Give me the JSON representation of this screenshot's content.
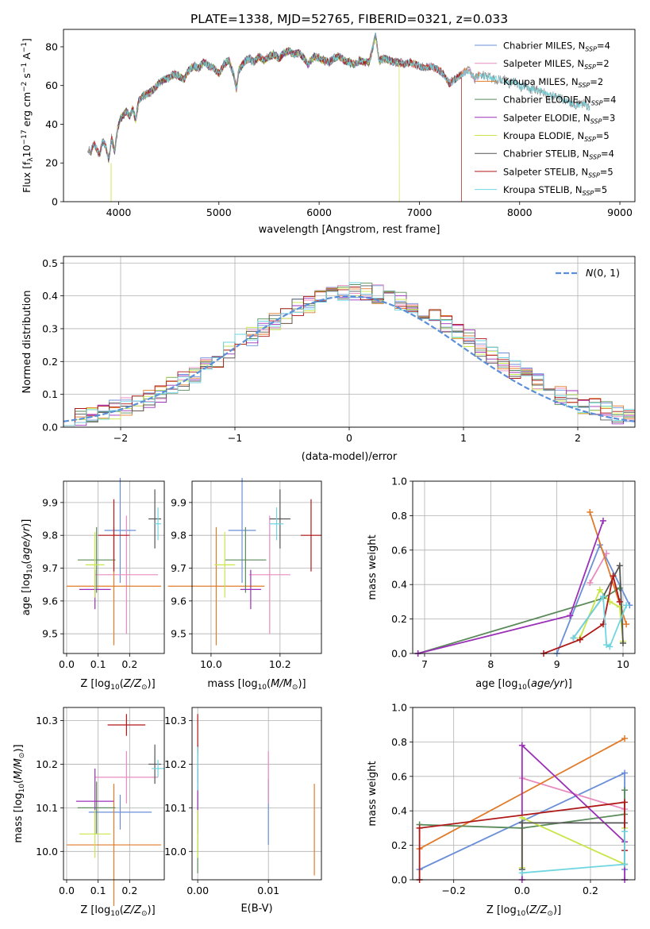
{
  "figure": {
    "title": "PLATE=1338, MJD=52765, FIBERID=0321, z=0.033"
  },
  "colors": {
    "chabrier_miles": "#6a8fd8",
    "salpeter_miles": "#e88cbf",
    "kroupa_miles": "#e07b2a",
    "chabrier_elodie": "#5a8a5a",
    "salpeter_elodie": "#9b30b8",
    "kroupa_elodie": "#c8e64a",
    "chabrier_stelib": "#555555",
    "salpeter_stelib": "#b01818",
    "kroupa_stelib": "#6fd6e0",
    "gauss": "#5b8fd9",
    "grid": "#b0b0b0"
  },
  "chart_data": [
    {
      "id": "spectrum",
      "type": "line",
      "xlabel": "wavelength [Angstrom, rest frame]",
      "ylabel": "Flux [f_λ10^-17 erg cm^-2 s^-1 A^-1]",
      "xlim": [
        3450,
        9150
      ],
      "ylim": [
        0,
        89
      ],
      "xticks": [
        4000,
        5000,
        6000,
        7000,
        8000,
        9000
      ],
      "yticks": [
        0,
        20,
        40,
        60,
        80
      ],
      "grid": false,
      "legend": "upper right",
      "observed": {
        "x": [
          3690,
          3720,
          3750,
          3780,
          3810,
          3840,
          3870,
          3900,
          3930,
          3960,
          3990,
          4020,
          4050,
          4080,
          4110,
          4140,
          4170,
          4200,
          4250,
          4300,
          4350,
          4400,
          4450,
          4500,
          4550,
          4600,
          4650,
          4700,
          4750,
          4800,
          4850,
          4900,
          4950,
          5000,
          5050,
          5100,
          5150,
          5175,
          5200,
          5250,
          5300,
          5350,
          5400,
          5450,
          5500,
          5550,
          5600,
          5650,
          5700,
          5750,
          5800,
          5850,
          5890,
          5950,
          6000,
          6050,
          6100,
          6150,
          6200,
          6250,
          6300,
          6350,
          6400,
          6450,
          6500,
          6563,
          6600,
          6650,
          6700,
          6750,
          6800,
          6850,
          6900,
          6950,
          7000,
          7050,
          7100,
          7150,
          7200,
          7250,
          7300,
          7350,
          7400,
          7450,
          7500,
          7550,
          7600,
          7650,
          7700,
          7750,
          7800,
          7850,
          7900,
          7950,
          8000,
          8050,
          8100,
          8150,
          8200,
          8250,
          8300,
          8350,
          8400,
          8450,
          8500,
          8550,
          8600,
          8650,
          8700
        ],
        "y": [
          28,
          25,
          30,
          27,
          24,
          31,
          29,
          22,
          33,
          26,
          38,
          43,
          45,
          47,
          44,
          48,
          42,
          52,
          55,
          56,
          58,
          61,
          63,
          64,
          66,
          65,
          63,
          68,
          70,
          69,
          72,
          70,
          69,
          66,
          71,
          73,
          65,
          58,
          68,
          72,
          74,
          72,
          75,
          73,
          75,
          76,
          74,
          77,
          78,
          76,
          77,
          74,
          71,
          75,
          74,
          73,
          72,
          74,
          75,
          73,
          72,
          71,
          73,
          72,
          72,
          86,
          73,
          74,
          73,
          72,
          72,
          71,
          72,
          71,
          70,
          69,
          70,
          69,
          68,
          65,
          61,
          63,
          65,
          67,
          68,
          63,
          66,
          65,
          64,
          63,
          63,
          63,
          61,
          62,
          59,
          60,
          58,
          58,
          57,
          56,
          54,
          55,
          54,
          52,
          51,
          50,
          50,
          51,
          48
        ]
      },
      "series": [
        {
          "name": "Chabrier MILES, N_SSP=4",
          "key": "chabrier_miles"
        },
        {
          "name": "Salpeter MILES, N_SSP=2",
          "key": "salpeter_miles"
        },
        {
          "name": "Kroupa MILES, N_SSP=2",
          "key": "kroupa_miles"
        },
        {
          "name": "Chabrier ELODIE, N_SSP=4",
          "key": "chabrier_elodie"
        },
        {
          "name": "Salpeter ELODIE, N_SSP=3",
          "key": "salpeter_elodie"
        },
        {
          "name": "Kroupa ELODIE, N_SSP=5",
          "key": "kroupa_elodie"
        },
        {
          "name": "Chabrier STELIB, N_SSP=4",
          "key": "chabrier_stelib"
        },
        {
          "name": "Salpeter STELIB, N_SSP=5",
          "key": "salpeter_stelib"
        },
        {
          "name": "Kroupa STELIB, N_SSP=5",
          "key": "kroupa_stelib"
        }
      ],
      "model_ranges": [
        [
          3700,
          7600
        ],
        [
          3700,
          7600
        ],
        [
          3700,
          7600
        ],
        [
          3900,
          6800
        ],
        [
          3900,
          6800
        ],
        [
          3900,
          6800
        ],
        [
          3700,
          7420
        ],
        [
          3700,
          7420
        ],
        [
          3700,
          8700
        ]
      ],
      "dropouts": [
        [
          3920,
          6800
        ],
        [
          6800,
          6800
        ],
        [
          7420,
          7420
        ]
      ]
    },
    {
      "id": "residual-hist",
      "type": "step",
      "xlabel": "(data-model)/error",
      "ylabel": "Normed distribution",
      "xlim": [
        -2.5,
        2.5
      ],
      "ylim": [
        0,
        0.52
      ],
      "xticks": [
        -2,
        -1,
        0,
        1,
        2
      ],
      "yticks": [
        0.0,
        0.1,
        0.2,
        0.3,
        0.4,
        0.5
      ],
      "grid": true,
      "legend": "upper right",
      "gauss_label": "N(0,1)",
      "bin_width": 0.1,
      "bin_start": -2.5
    },
    {
      "id": "age-vs-Z",
      "type": "errorbar",
      "xlabel": "Z [log10(Z/Z☉)]",
      "ylabel": "age [log10(age/yr)]",
      "xlim": [
        -0.01,
        0.31
      ],
      "ylim": [
        9.44,
        9.965
      ],
      "xticks": [
        0.0,
        0.1,
        0.2
      ],
      "yticks": [
        9.5,
        9.6,
        9.7,
        9.8,
        9.9
      ],
      "grid": true,
      "points": [
        {
          "key": "chabrier_miles",
          "x": 0.17,
          "xerr": 0.05,
          "y": 9.815,
          "yerr": 0.16
        },
        {
          "key": "salpeter_miles",
          "x": 0.19,
          "xerr": 0.1,
          "y": 9.68,
          "yerr": 0.18
        },
        {
          "key": "kroupa_miles",
          "x": 0.15,
          "xerr": 0.15,
          "y": 9.645,
          "yerr": 0.18
        },
        {
          "key": "chabrier_elodie",
          "x": 0.095,
          "xerr": 0.06,
          "y": 9.725,
          "yerr": 0.1
        },
        {
          "key": "salpeter_elodie",
          "x": 0.09,
          "xerr": 0.05,
          "y": 9.635,
          "yerr": 0.06
        },
        {
          "key": "kroupa_elodie",
          "x": 0.09,
          "xerr": 0.03,
          "y": 9.71,
          "yerr": 0.1
        },
        {
          "key": "chabrier_stelib",
          "x": 0.28,
          "xerr": 0.02,
          "y": 9.85,
          "yerr": 0.09
        },
        {
          "key": "salpeter_stelib",
          "x": 0.15,
          "xerr": 0.05,
          "y": 9.8,
          "yerr": 0.11
        },
        {
          "key": "kroupa_stelib",
          "x": 0.29,
          "xerr": 0.01,
          "y": 9.835,
          "yerr": 0.05
        }
      ]
    },
    {
      "id": "age-vs-mass",
      "type": "errorbar",
      "xlabel": "mass [log10(M/M☉)]",
      "ylabel": "",
      "xlim": [
        9.945,
        10.32
      ],
      "ylim": [
        9.44,
        9.965
      ],
      "xticks": [
        10.0,
        10.2
      ],
      "yticks": [
        9.5,
        9.6,
        9.7,
        9.8,
        9.9
      ],
      "grid": true,
      "points": [
        {
          "key": "chabrier_miles",
          "x": 10.09,
          "xerr": 0.04,
          "y": 9.815,
          "yerr": 0.16
        },
        {
          "key": "salpeter_miles",
          "x": 10.17,
          "xerr": 0.06,
          "y": 9.68,
          "yerr": 0.18
        },
        {
          "key": "kroupa_miles",
          "x": 10.015,
          "xerr": 0.14,
          "y": 9.645,
          "yerr": 0.18
        },
        {
          "key": "chabrier_elodie",
          "x": 10.1,
          "xerr": 0.06,
          "y": 9.725,
          "yerr": 0.1
        },
        {
          "key": "salpeter_elodie",
          "x": 10.115,
          "xerr": 0.03,
          "y": 9.635,
          "yerr": 0.06
        },
        {
          "key": "kroupa_elodie",
          "x": 10.04,
          "xerr": 0.03,
          "y": 9.71,
          "yerr": 0.1
        },
        {
          "key": "chabrier_stelib",
          "x": 10.2,
          "xerr": 0.03,
          "y": 9.85,
          "yerr": 0.09
        },
        {
          "key": "salpeter_stelib",
          "x": 10.29,
          "xerr": 0.03,
          "y": 9.8,
          "yerr": 0.11
        },
        {
          "key": "kroupa_stelib",
          "x": 10.19,
          "xerr": 0.02,
          "y": 9.835,
          "yerr": 0.05
        }
      ]
    },
    {
      "id": "mass-weight-vs-age",
      "type": "line",
      "xlabel": "age [log10(age/yr)]",
      "ylabel": "mass weight",
      "xlim": [
        6.82,
        10.18
      ],
      "ylim": [
        0.0,
        1.0
      ],
      "xticks": [
        7,
        8,
        9,
        10
      ],
      "yticks": [
        0.0,
        0.2,
        0.4,
        0.6,
        0.8,
        1.0
      ],
      "grid": true,
      "series": [
        {
          "key": "chabrier_miles",
          "x": [
            9.0,
            9.65,
            10.1
          ],
          "y": [
            0.0,
            0.63,
            0.28
          ]
        },
        {
          "key": "salpeter_miles",
          "x": [
            9.5,
            9.75
          ],
          "y": [
            0.41,
            0.58
          ]
        },
        {
          "key": "kroupa_miles",
          "x": [
            9.5,
            10.05
          ],
          "y": [
            0.82,
            0.17
          ]
        },
        {
          "key": "chabrier_elodie",
          "x": [
            6.9,
            9.7,
            9.95
          ],
          "y": [
            0.0,
            0.32,
            0.38
          ]
        },
        {
          "key": "salpeter_elodie",
          "x": [
            6.9,
            9.2,
            9.7
          ],
          "y": [
            0.0,
            0.22,
            0.77
          ]
        },
        {
          "key": "kroupa_elodie",
          "x": [
            9.35,
            9.65,
            9.8,
            9.95,
            10.0
          ],
          "y": [
            0.09,
            0.37,
            0.3,
            0.27,
            0.07
          ]
        },
        {
          "key": "chabrier_stelib",
          "x": [
            9.25,
            9.7,
            9.95,
            10.0
          ],
          "y": [
            0.09,
            0.33,
            0.51,
            0.06
          ]
        },
        {
          "key": "salpeter_stelib",
          "x": [
            8.8,
            9.35,
            9.7,
            9.85,
            9.95
          ],
          "y": [
            0.0,
            0.08,
            0.17,
            0.45,
            0.3
          ]
        },
        {
          "key": "kroupa_stelib",
          "x": [
            9.25,
            9.7,
            9.75,
            9.8,
            10.05
          ],
          "y": [
            0.09,
            0.33,
            0.05,
            0.04,
            0.28
          ]
        }
      ]
    },
    {
      "id": "mass-vs-Z",
      "type": "errorbar",
      "xlabel": "Z [log10(Z/Z☉)]",
      "ylabel": "mass [log10(M/M☉)]",
      "xlim": [
        -0.01,
        0.31
      ],
      "ylim": [
        9.935,
        10.33
      ],
      "xticks": [
        0.0,
        0.1,
        0.2
      ],
      "yticks": [
        10.0,
        10.1,
        10.2,
        10.3
      ],
      "grid": true,
      "points": [
        {
          "key": "chabrier_miles",
          "x": 0.17,
          "xerr": 0.1,
          "y": 10.09,
          "yerr": 0.04
        },
        {
          "key": "salpeter_miles",
          "x": 0.19,
          "xerr": 0.1,
          "y": 10.17,
          "yerr": 0.06
        },
        {
          "key": "kroupa_miles",
          "x": 0.15,
          "xerr": 0.15,
          "y": 10.015,
          "yerr": 0.14
        },
        {
          "key": "chabrier_elodie",
          "x": 0.095,
          "xerr": 0.06,
          "y": 10.1,
          "yerr": 0.06
        },
        {
          "key": "salpeter_elodie",
          "x": 0.09,
          "xerr": 0.06,
          "y": 10.115,
          "yerr": 0.075
        },
        {
          "key": "kroupa_elodie",
          "x": 0.09,
          "xerr": 0.05,
          "y": 10.04,
          "yerr": 0.055
        },
        {
          "key": "chabrier_stelib",
          "x": 0.28,
          "xerr": 0.02,
          "y": 10.2,
          "yerr": 0.045
        },
        {
          "key": "salpeter_stelib",
          "x": 0.19,
          "xerr": 0.06,
          "y": 10.29,
          "yerr": 0.025
        },
        {
          "key": "kroupa_stelib",
          "x": 0.29,
          "xerr": 0.02,
          "y": 10.19,
          "yerr": 0.02
        }
      ]
    },
    {
      "id": "mass-vs-ebv",
      "type": "errorbar",
      "xlabel": "E(B-V)",
      "ylabel": "",
      "xlim": [
        -0.0008,
        0.0175
      ],
      "ylim": [
        9.935,
        10.33
      ],
      "xticks": [
        0.0,
        0.01
      ],
      "yticks": [
        10.0,
        10.1,
        10.2,
        10.3
      ],
      "grid": true,
      "points": [
        {
          "key": "chabrier_miles",
          "x": 0.01,
          "xerr": 0,
          "y": 10.09,
          "yerr": 0.075
        },
        {
          "key": "salpeter_miles",
          "x": 0.01,
          "xerr": 0,
          "y": 10.17,
          "yerr": 0.06
        },
        {
          "key": "kroupa_miles",
          "x": 0.0165,
          "xerr": 0,
          "y": 10.05,
          "yerr": 0.105
        },
        {
          "key": "chabrier_elodie",
          "x": 0.0,
          "xerr": 0,
          "y": 10.05,
          "yerr": 0.1
        },
        {
          "key": "salpeter_elodie",
          "x": 0.0,
          "xerr": 0,
          "y": 10.115,
          "yerr": 0.075
        },
        {
          "key": "kroupa_elodie",
          "x": 0.0,
          "xerr": 0,
          "y": 10.04,
          "yerr": 0.055
        },
        {
          "key": "chabrier_stelib",
          "x": 0.0,
          "xerr": 0,
          "y": 10.2,
          "yerr": 0.045
        },
        {
          "key": "salpeter_stelib",
          "x": 0.0,
          "xerr": 0,
          "y": 10.27,
          "yerr": 0.045
        },
        {
          "key": "kroupa_stelib",
          "x": 0.0,
          "xerr": 0,
          "y": 10.19,
          "yerr": 0.05
        }
      ]
    },
    {
      "id": "mass-weight-vs-Z",
      "type": "line",
      "xlabel": "Z [log10(Z/Z☉)]",
      "ylabel": "mass weight",
      "xlim": [
        -0.32,
        0.33
      ],
      "ylim": [
        0.0,
        1.0
      ],
      "xticks": [
        -0.2,
        0.0,
        0.2
      ],
      "yticks": [
        0.0,
        0.2,
        0.4,
        0.6,
        0.8,
        1.0
      ],
      "grid": true,
      "series": [
        {
          "key": "chabrier_miles",
          "x": [
            -0.3,
            0.3,
            0.3
          ],
          "y": [
            0.06,
            0.62,
            0.06
          ]
        },
        {
          "key": "salpeter_miles",
          "x": [
            0.0,
            0.3
          ],
          "y": [
            0.59,
            0.41
          ]
        },
        {
          "key": "kroupa_miles",
          "x": [
            -0.3,
            0.3
          ],
          "y": [
            0.18,
            0.82
          ]
        },
        {
          "key": "chabrier_elodie",
          "x": [
            -0.3,
            0.0,
            0.3,
            0.3
          ],
          "y": [
            0.32,
            0.3,
            0.38,
            0.52
          ]
        },
        {
          "key": "salpeter_elodie",
          "x": [
            0.0,
            0.0,
            0.3,
            0.3
          ],
          "y": [
            0.0,
            0.78,
            0.22,
            0.0
          ]
        },
        {
          "key": "kroupa_elodie",
          "x": [
            0.0,
            0.0,
            0.3,
            0.3
          ],
          "y": [
            0.07,
            0.36,
            0.09,
            0.3
          ]
        },
        {
          "key": "chabrier_stelib",
          "x": [
            0.0,
            0.0,
            0.3,
            0.3
          ],
          "y": [
            0.06,
            0.33,
            0.33,
            0.09
          ]
        },
        {
          "key": "salpeter_stelib",
          "x": [
            -0.3,
            -0.3,
            0.3,
            0.3
          ],
          "y": [
            0.0,
            0.3,
            0.45,
            0.17
          ]
        },
        {
          "key": "kroupa_stelib",
          "x": [
            0.0,
            0.3,
            0.3
          ],
          "y": [
            0.04,
            0.09,
            0.28
          ]
        }
      ]
    }
  ]
}
